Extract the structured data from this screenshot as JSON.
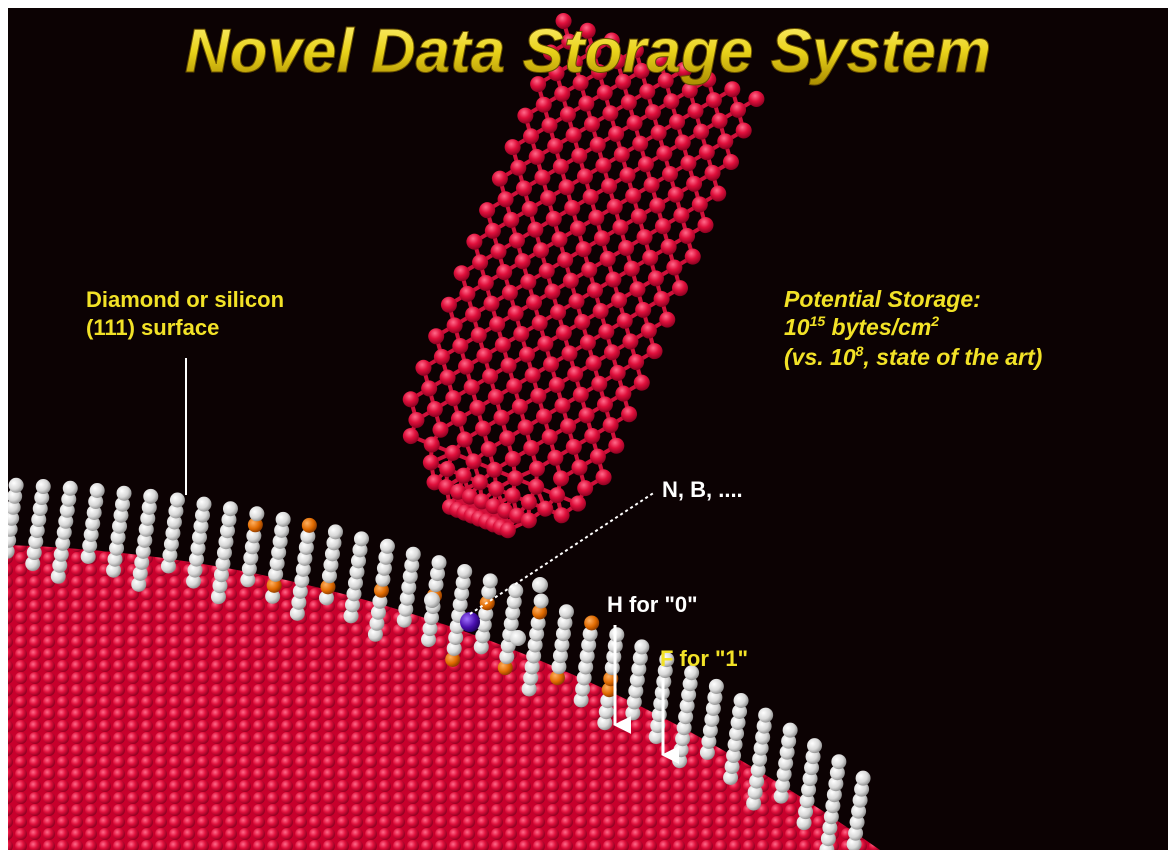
{
  "title": "Novel Data Storage System",
  "surface_label": {
    "line1": "Diamond or silicon",
    "line2": "(111) surface"
  },
  "storage": {
    "heading": "Potential Storage:",
    "line1": {
      "base": "10",
      "exp": "15",
      "unit": " bytes/cm",
      "unit_exp": "2"
    },
    "line2": {
      "before": "(vs. 10",
      "exp": "8",
      "after": ", state of the art)"
    }
  },
  "dopant_label": "N, B, ....",
  "h_label": "H for \"0\"",
  "f_label": "F for \"1\""
}
